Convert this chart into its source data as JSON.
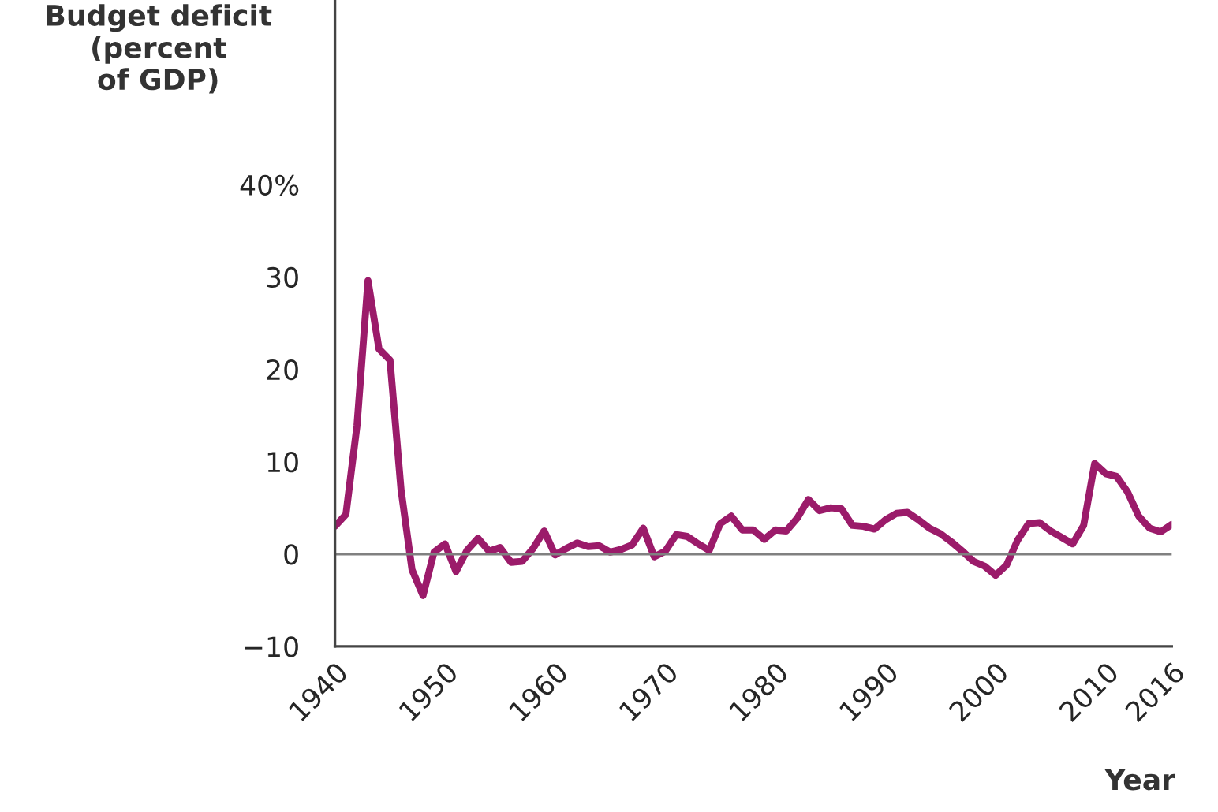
{
  "chart_data": {
    "type": "line",
    "ylabel": "Budget deficit\n(percent\nof GDP)",
    "xlabel": "Year",
    "x": [
      1940,
      1941,
      1942,
      1943,
      1944,
      1945,
      1946,
      1947,
      1948,
      1949,
      1950,
      1951,
      1952,
      1953,
      1954,
      1955,
      1956,
      1957,
      1958,
      1959,
      1960,
      1961,
      1962,
      1963,
      1964,
      1965,
      1966,
      1967,
      1968,
      1969,
      1970,
      1971,
      1972,
      1973,
      1974,
      1975,
      1976,
      1977,
      1978,
      1979,
      1980,
      1981,
      1982,
      1983,
      1984,
      1985,
      1986,
      1987,
      1988,
      1989,
      1990,
      1991,
      1992,
      1993,
      1994,
      1995,
      1996,
      1997,
      1998,
      1999,
      2000,
      2001,
      2002,
      2003,
      2004,
      2005,
      2006,
      2007,
      2008,
      2009,
      2010,
      2011,
      2012,
      2013,
      2014,
      2015,
      2016
    ],
    "series": [
      {
        "color": "#9b1b6a",
        "values": [
          3.0,
          4.3,
          13.9,
          29.6,
          22.2,
          21.0,
          7.0,
          -1.7,
          -4.5,
          0.2,
          1.1,
          -1.9,
          0.4,
          1.7,
          0.3,
          0.7,
          -0.9,
          -0.8,
          0.6,
          2.5,
          -0.1,
          0.6,
          1.2,
          0.8,
          0.9,
          0.2,
          0.5,
          1.0,
          2.8,
          -0.3,
          0.3,
          2.1,
          1.9,
          1.1,
          0.4,
          3.3,
          4.1,
          2.6,
          2.6,
          1.6,
          2.6,
          2.5,
          3.9,
          5.9,
          4.7,
          5.0,
          4.9,
          3.1,
          3.0,
          2.7,
          3.7,
          4.4,
          4.5,
          3.7,
          2.8,
          2.2,
          1.3,
          0.3,
          -0.8,
          -1.3,
          -2.3,
          -1.2,
          1.5,
          3.3,
          3.4,
          2.5,
          1.8,
          1.1,
          3.1,
          9.8,
          8.7,
          8.4,
          6.7,
          4.1,
          2.8,
          2.4,
          3.2
        ]
      }
    ],
    "xlim": [
      1940,
      2016
    ],
    "xticks": [
      1940,
      1950,
      1960,
      1970,
      1980,
      1990,
      2000,
      2010,
      2016
    ],
    "ylim": [
      -10,
      60
    ],
    "yticks": [
      {
        "value": -10,
        "label": "−10"
      },
      0,
      10,
      20,
      30,
      {
        "value": 40,
        "label": "40%"
      }
    ],
    "ref_lines": [
      {
        "axis": "y",
        "value": 0,
        "color": "#808080"
      }
    ],
    "grid": false
  }
}
